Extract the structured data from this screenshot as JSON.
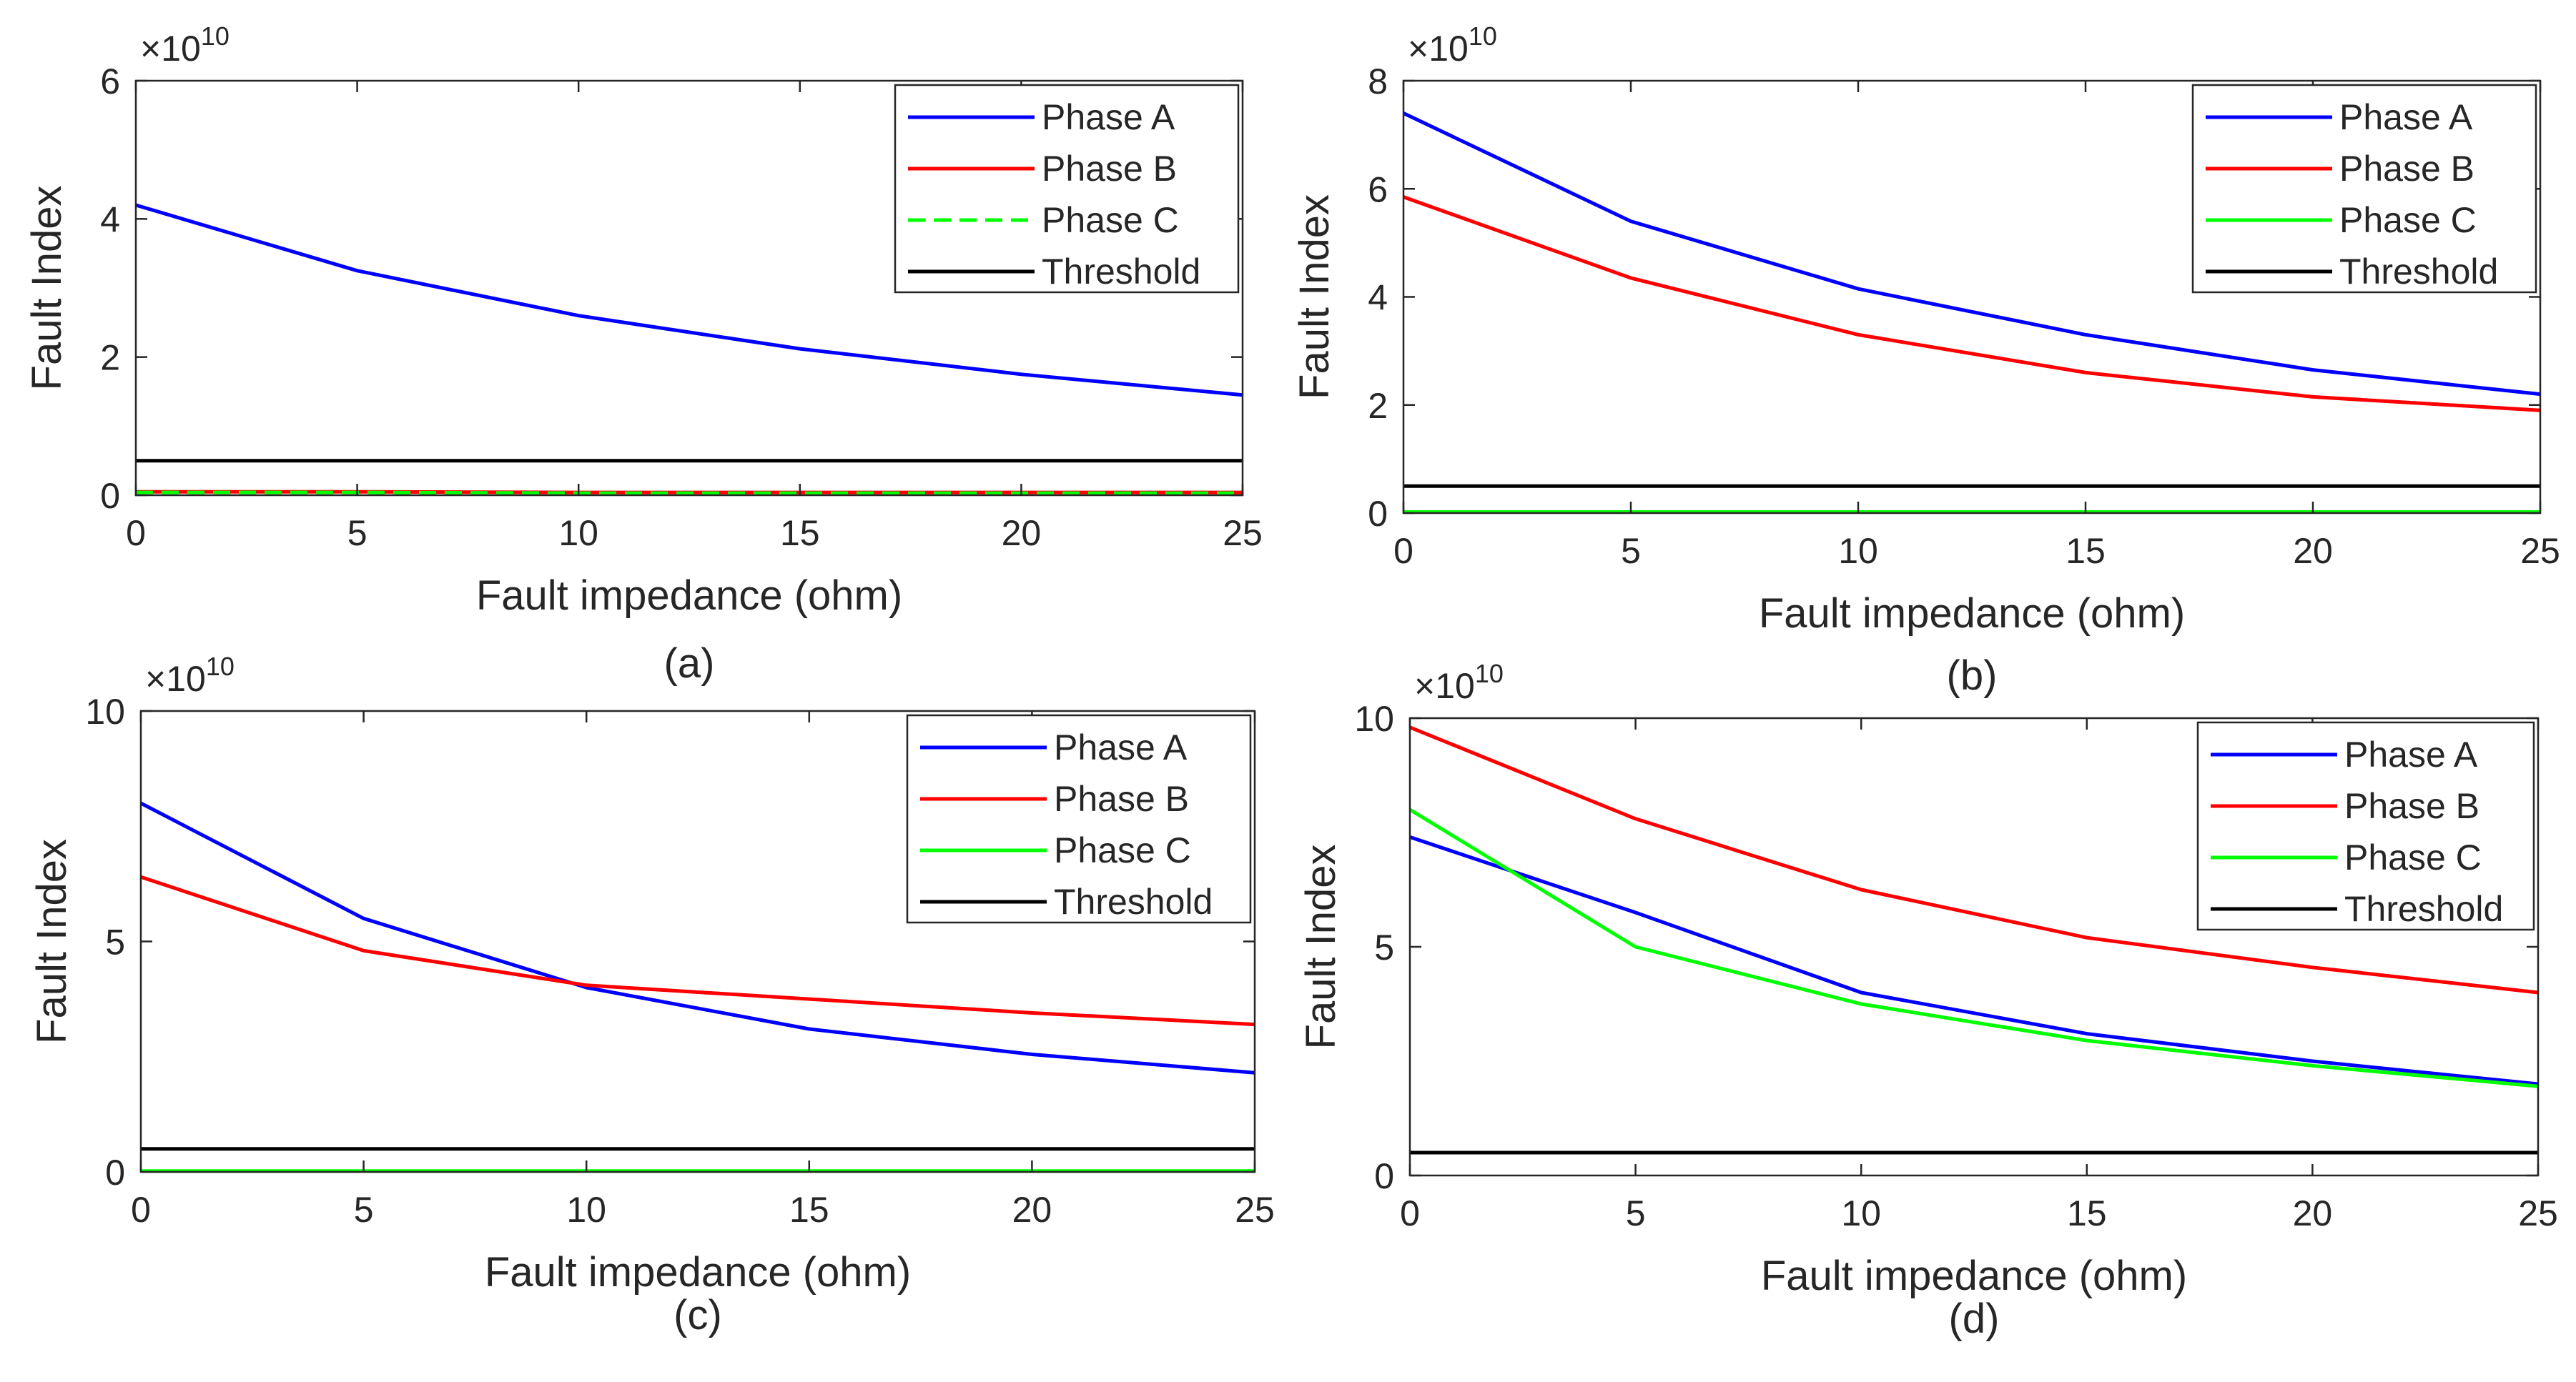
{
  "chart_data": [
    {
      "type": "line",
      "panel_label": "(a)",
      "xlabel": "Fault impedance (ohm)",
      "ylabel": "Fault Index",
      "exponent_base": "×10",
      "exponent_power": "10",
      "xlim": [
        0,
        25
      ],
      "ylim": [
        0,
        6
      ],
      "xticks": [
        0,
        5,
        10,
        15,
        20,
        25
      ],
      "yticks": [
        0,
        2,
        4,
        6
      ],
      "legend_position": "top-right",
      "x": [
        0,
        5,
        10,
        15,
        20,
        25
      ],
      "series": [
        {
          "name": "Phase A",
          "color": "#0000ff",
          "dash": "solid",
          "values": [
            4.2,
            3.25,
            2.6,
            2.12,
            1.75,
            1.45
          ]
        },
        {
          "name": "Phase B",
          "color": "#ff0000",
          "dash": "solid",
          "values": [
            0.05,
            0.05,
            0.04,
            0.04,
            0.04,
            0.04
          ]
        },
        {
          "name": "Phase C",
          "color": "#00ff00",
          "dash": "dashed",
          "values": [
            0.04,
            0.04,
            0.03,
            0.03,
            0.03,
            0.03
          ]
        },
        {
          "name": "Threshold",
          "color": "#000000",
          "dash": "solid",
          "values": [
            0.5,
            0.5,
            0.5,
            0.5,
            0.5,
            0.5
          ]
        }
      ]
    },
    {
      "type": "line",
      "panel_label": "(b)",
      "xlabel": "Fault impedance (ohm)",
      "ylabel": "Fault Index",
      "exponent_base": "×10",
      "exponent_power": "10",
      "xlim": [
        0,
        25
      ],
      "ylim": [
        0,
        8
      ],
      "xticks": [
        0,
        5,
        10,
        15,
        20,
        25
      ],
      "yticks": [
        0,
        2,
        4,
        6,
        8
      ],
      "legend_position": "top-right",
      "x": [
        0,
        5,
        10,
        15,
        20,
        25
      ],
      "series": [
        {
          "name": "Phase A",
          "color": "#0000ff",
          "dash": "solid",
          "values": [
            7.4,
            5.4,
            4.15,
            3.3,
            2.65,
            2.2
          ]
        },
        {
          "name": "Phase B",
          "color": "#ff0000",
          "dash": "solid",
          "values": [
            5.85,
            4.35,
            3.3,
            2.6,
            2.15,
            1.9
          ]
        },
        {
          "name": "Phase C",
          "color": "#00ff00",
          "dash": "solid",
          "values": [
            0.02,
            0.02,
            0.02,
            0.02,
            0.02,
            0.02
          ]
        },
        {
          "name": "Threshold",
          "color": "#000000",
          "dash": "solid",
          "values": [
            0.5,
            0.5,
            0.5,
            0.5,
            0.5,
            0.5
          ]
        }
      ]
    },
    {
      "type": "line",
      "panel_label": "(c)",
      "xlabel": "Fault impedance (ohm)",
      "ylabel": "Fault Index",
      "exponent_base": "×10",
      "exponent_power": "10",
      "xlim": [
        0,
        25
      ],
      "ylim": [
        0,
        10
      ],
      "xticks": [
        0,
        5,
        10,
        15,
        20,
        25
      ],
      "yticks": [
        0,
        5,
        10
      ],
      "legend_position": "top-right",
      "x": [
        0,
        5,
        10,
        15,
        20,
        25
      ],
      "series": [
        {
          "name": "Phase A",
          "color": "#0000ff",
          "dash": "solid",
          "values": [
            8.0,
            5.5,
            4.0,
            3.1,
            2.55,
            2.15
          ]
        },
        {
          "name": "Phase B",
          "color": "#ff0000",
          "dash": "solid",
          "values": [
            6.4,
            4.8,
            4.05,
            3.75,
            3.45,
            3.2
          ]
        },
        {
          "name": "Phase C",
          "color": "#00ff00",
          "dash": "solid",
          "values": [
            0.02,
            0.02,
            0.02,
            0.02,
            0.02,
            0.02
          ]
        },
        {
          "name": "Threshold",
          "color": "#000000",
          "dash": "solid",
          "values": [
            0.5,
            0.5,
            0.5,
            0.5,
            0.5,
            0.5
          ]
        }
      ]
    },
    {
      "type": "line",
      "panel_label": "(d)",
      "xlabel": "Fault impedance (ohm)",
      "ylabel": "Fault Index",
      "exponent_base": "×10",
      "exponent_power": "10",
      "xlim": [
        0,
        25
      ],
      "ylim": [
        0,
        10
      ],
      "xticks": [
        0,
        5,
        10,
        15,
        20,
        25
      ],
      "yticks": [
        0,
        5,
        10
      ],
      "legend_position": "top-right",
      "x": [
        0,
        5,
        10,
        15,
        20,
        25
      ],
      "series": [
        {
          "name": "Phase A",
          "color": "#0000ff",
          "dash": "solid",
          "values": [
            7.4,
            5.75,
            4.0,
            3.1,
            2.5,
            2.0
          ]
        },
        {
          "name": "Phase B",
          "color": "#ff0000",
          "dash": "solid",
          "values": [
            9.8,
            7.8,
            6.25,
            5.2,
            4.55,
            4.0
          ]
        },
        {
          "name": "Phase C",
          "color": "#00ff00",
          "dash": "solid",
          "values": [
            8.0,
            5.0,
            3.75,
            2.95,
            2.4,
            1.95
          ]
        },
        {
          "name": "Threshold",
          "color": "#000000",
          "dash": "solid",
          "values": [
            0.5,
            0.5,
            0.5,
            0.5,
            0.5,
            0.5
          ]
        }
      ]
    }
  ]
}
